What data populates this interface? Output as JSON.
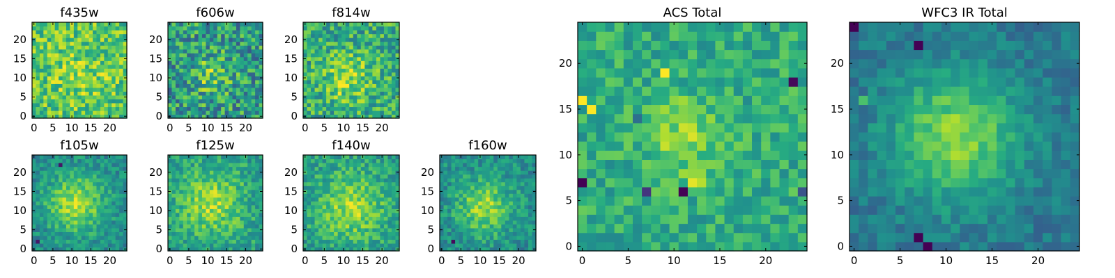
{
  "figure": {
    "colormap": "viridis",
    "colors": {
      "low": "#440154",
      "mid": "#21908d",
      "high": "#fde725",
      "frame": "#000000",
      "background": "#ffffff"
    }
  },
  "chart_data": [
    {
      "type": "heatmap",
      "title": "f435w",
      "grid": false,
      "xlim": [
        0,
        24
      ],
      "ylim": [
        0,
        24
      ],
      "grid_size": 25,
      "xticks": [
        0,
        5,
        10,
        15,
        20
      ],
      "yticks": [
        0,
        5,
        10,
        15,
        20
      ],
      "source_center": [
        12,
        11
      ],
      "source_width": 6.0,
      "source_strength": 0.1,
      "background_level": 0.72,
      "noise_amplitude": 0.44,
      "seed": 11,
      "bright_spots": [],
      "dark_spots": []
    },
    {
      "type": "heatmap",
      "title": "f606w",
      "grid": false,
      "xlim": [
        0,
        24
      ],
      "ylim": [
        0,
        24
      ],
      "grid_size": 25,
      "xticks": [
        0,
        5,
        10,
        15,
        20
      ],
      "yticks": [
        0,
        5,
        10,
        15,
        20
      ],
      "source_center": [
        11,
        11
      ],
      "source_width": 3.5,
      "source_strength": 0.22,
      "background_level": 0.55,
      "noise_amplitude": 0.55,
      "seed": 23,
      "bright_spots": [
        [
          1,
          16,
          0.3
        ]
      ],
      "dark_spots": []
    },
    {
      "type": "heatmap",
      "title": "f814w",
      "grid": false,
      "xlim": [
        0,
        24
      ],
      "ylim": [
        0,
        24
      ],
      "grid_size": 25,
      "xticks": [
        0,
        5,
        10,
        15,
        20
      ],
      "yticks": [
        0,
        5,
        10,
        15,
        20
      ],
      "source_center": [
        11,
        10
      ],
      "source_width": 4.5,
      "source_strength": 0.24,
      "background_level": 0.62,
      "noise_amplitude": 0.46,
      "seed": 37,
      "bright_spots": [],
      "dark_spots": []
    },
    {
      "type": "heatmap",
      "title": "f105w",
      "grid": false,
      "xlim": [
        0,
        24
      ],
      "ylim": [
        0,
        24
      ],
      "grid_size": 25,
      "xticks": [
        0,
        5,
        10,
        15,
        20
      ],
      "yticks": [
        0,
        5,
        10,
        15,
        20
      ],
      "source_center": [
        11,
        12
      ],
      "source_width": 5.5,
      "source_strength": 0.4,
      "background_level": 0.48,
      "noise_amplitude": 0.28,
      "seed": 41,
      "bright_spots": [],
      "dark_spots": [
        [
          7,
          22,
          0.5
        ],
        [
          1,
          2,
          0.4
        ]
      ]
    },
    {
      "type": "heatmap",
      "title": "f125w",
      "grid": false,
      "xlim": [
        0,
        24
      ],
      "ylim": [
        0,
        24
      ],
      "grid_size": 25,
      "xticks": [
        0,
        5,
        10,
        15,
        20
      ],
      "yticks": [
        0,
        5,
        10,
        15,
        20
      ],
      "source_center": [
        11,
        12
      ],
      "source_width": 6.0,
      "source_strength": 0.3,
      "background_level": 0.56,
      "noise_amplitude": 0.32,
      "seed": 53,
      "bright_spots": [],
      "dark_spots": []
    },
    {
      "type": "heatmap",
      "title": "f140w",
      "grid": false,
      "xlim": [
        0,
        24
      ],
      "ylim": [
        0,
        24
      ],
      "grid_size": 25,
      "xticks": [
        0,
        5,
        10,
        15,
        20
      ],
      "yticks": [
        0,
        5,
        10,
        15,
        20
      ],
      "source_center": [
        12,
        11
      ],
      "source_width": 6.0,
      "source_strength": 0.3,
      "background_level": 0.56,
      "noise_amplitude": 0.32,
      "seed": 67,
      "bright_spots": [],
      "dark_spots": []
    },
    {
      "type": "heatmap",
      "title": "f160w",
      "grid": false,
      "xlim": [
        0,
        24
      ],
      "ylim": [
        0,
        24
      ],
      "grid_size": 25,
      "xticks": [
        0,
        5,
        10,
        15,
        20
      ],
      "yticks": [
        0,
        5,
        10,
        15,
        20
      ],
      "source_center": [
        11,
        11
      ],
      "source_width": 5.0,
      "source_strength": 0.35,
      "background_level": 0.5,
      "noise_amplitude": 0.3,
      "seed": 79,
      "bright_spots": [],
      "dark_spots": [
        [
          3,
          2,
          0.4
        ]
      ]
    },
    {
      "type": "heatmap",
      "title": "ACS Total",
      "grid": false,
      "xlim": [
        0,
        24
      ],
      "ylim": [
        0,
        24
      ],
      "grid_size": 25,
      "xticks": [
        0,
        5,
        10,
        15,
        20
      ],
      "yticks": [
        0,
        5,
        10,
        15,
        20
      ],
      "source_center": [
        11,
        12
      ],
      "source_width": 3.0,
      "source_strength": 0.22,
      "background_level": 0.62,
      "noise_amplitude": 0.3,
      "seed": 97,
      "bright_spots": [
        [
          0,
          16,
          0.35
        ],
        [
          1,
          15,
          0.3
        ],
        [
          9,
          19,
          0.35
        ],
        [
          13,
          7,
          0.3
        ],
        [
          12,
          7,
          0.25
        ]
      ],
      "dark_spots": [
        [
          0,
          7,
          0.6
        ],
        [
          7,
          6,
          0.6
        ],
        [
          11,
          6,
          0.6
        ],
        [
          24,
          6,
          0.5
        ],
        [
          6,
          14,
          0.4
        ],
        [
          23,
          18,
          0.5
        ]
      ]
    },
    {
      "type": "heatmap",
      "title": "WFC3 IR Total",
      "grid": false,
      "xlim": [
        0,
        24
      ],
      "ylim": [
        0,
        24
      ],
      "grid_size": 25,
      "xticks": [
        0,
        5,
        10,
        15,
        20
      ],
      "yticks": [
        0,
        5,
        10,
        15,
        20
      ],
      "source_center": [
        11,
        12
      ],
      "source_width": 5.0,
      "source_strength": 0.42,
      "background_level": 0.4,
      "noise_amplitude": 0.2,
      "seed": 113,
      "bright_spots": [
        [
          1,
          16,
          0.3
        ]
      ],
      "dark_spots": [
        [
          0,
          24,
          0.6
        ],
        [
          7,
          22,
          0.6
        ],
        [
          8,
          0,
          0.6
        ],
        [
          7,
          1,
          0.4
        ]
      ]
    }
  ]
}
